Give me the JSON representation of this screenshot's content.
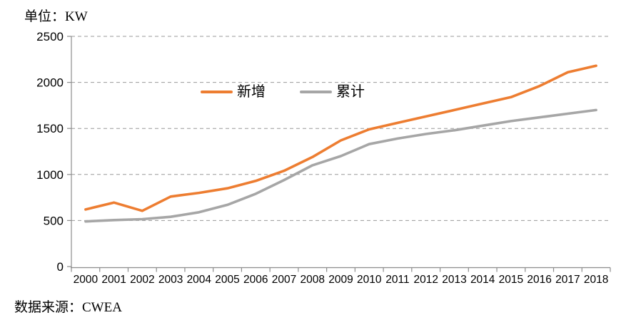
{
  "unit_label": "单位：KW",
  "source_label": "数据来源：CWEA",
  "legend": {
    "added_label": "新增",
    "cumulative_label": "累计"
  },
  "colors": {
    "added_line": "#ED7D31",
    "cumulative_line": "#A6A6A6",
    "gridline": "#999999",
    "axis": "#8C8C8C",
    "text": "#000000"
  },
  "chart_data": {
    "type": "line",
    "title": "",
    "xlabel": "",
    "ylabel": "单位：KW",
    "categories": [
      "2000",
      "2001",
      "2002",
      "2003",
      "2004",
      "2005",
      "2006",
      "2007",
      "2008",
      "2009",
      "2010",
      "2011",
      "2012",
      "2013",
      "2014",
      "2015",
      "2016",
      "2017",
      "2018"
    ],
    "series": [
      {
        "name": "新增",
        "color": "#ED7D31",
        "values": [
          620,
          695,
          605,
          760,
          800,
          850,
          930,
          1040,
          1190,
          1370,
          1490,
          1560,
          1630,
          1700,
          1770,
          1840,
          1960,
          2110,
          2180
        ]
      },
      {
        "name": "累计",
        "color": "#A6A6A6",
        "values": [
          490,
          505,
          515,
          540,
          590,
          670,
          790,
          940,
          1100,
          1200,
          1330,
          1390,
          1440,
          1480,
          1530,
          1580,
          1620,
          1660,
          1700
        ]
      }
    ],
    "ylim": [
      0,
      2500
    ],
    "yticks": [
      0,
      500,
      1000,
      1500,
      2000,
      2500
    ],
    "grid": "horizontal-dashed",
    "legend_position": "inside-top-left-of-center",
    "source": "数据来源：CWEA"
  }
}
